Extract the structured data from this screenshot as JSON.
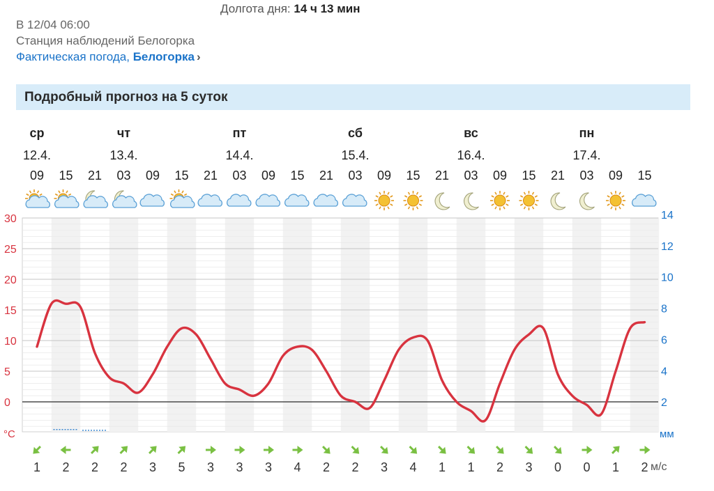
{
  "header": {
    "day_length_label": "Долгота дня:",
    "day_length_value": "14 ч 13 мин",
    "observation_time": "В 12/04 06:00",
    "station": "Станция наблюдений Белогорка",
    "actual_weather_link": "Фактическая погода,",
    "actual_weather_city": "Белогорка",
    "chevron": "›"
  },
  "section": {
    "title": "Подробный прогноз на 5 суток"
  },
  "colors": {
    "temperature_line": "#d8333f",
    "temp_axis": "#d8333f",
    "precip_axis": "#1a73c9",
    "wind_arrow": "#7ac043",
    "banner_bg": "#d8ecf9"
  },
  "chart_data": {
    "type": "line",
    "days": [
      {
        "weekday": "ср",
        "date": "12.4."
      },
      {
        "weekday": "чт",
        "date": "13.4."
      },
      {
        "weekday": "пт",
        "date": "14.4."
      },
      {
        "weekday": "сб",
        "date": "15.4."
      },
      {
        "weekday": "вс",
        "date": "16.4."
      },
      {
        "weekday": "пн",
        "date": "17.4."
      }
    ],
    "hours": [
      "09",
      "15",
      "21",
      "03",
      "09",
      "15",
      "21",
      "03",
      "09",
      "15",
      "21",
      "03",
      "09",
      "15",
      "21",
      "03",
      "09",
      "15",
      "21",
      "03",
      "09",
      "15"
    ],
    "weather_icons": [
      "sun-cloud",
      "sun-cloud",
      "moon-cloud",
      "moon-cloud",
      "cloud",
      "sun-cloud",
      "cloud",
      "cloud",
      "cloud",
      "cloud",
      "cloud",
      "cloud",
      "sun",
      "sun",
      "moon",
      "moon",
      "sun",
      "sun",
      "moon",
      "moon",
      "sun",
      "cloud"
    ],
    "series": [
      {
        "name": "",
        "x": [
          0,
          0.5,
          1,
          1.5,
          2,
          2.5,
          3,
          3.5,
          4,
          4.5,
          5,
          5.5,
          6,
          6.5,
          7,
          7.5,
          8,
          8.5,
          9,
          9.5,
          10,
          10.5,
          11,
          11.5,
          12,
          12.5,
          13,
          13.5,
          14,
          14.5,
          15,
          15.5,
          16,
          16.5,
          17,
          17.5,
          18,
          18.5,
          19,
          19.5,
          20,
          20.5,
          21
        ],
        "values": [
          9.0,
          16.0,
          16.0,
          15.5,
          8.0,
          4.0,
          3.0,
          1.5,
          4.5,
          9.0,
          12.0,
          11.0,
          7.0,
          3.0,
          2.0,
          1.0,
          3.0,
          7.5,
          9.0,
          8.5,
          5.0,
          1.0,
          0.0,
          -1.0,
          3.5,
          8.5,
          10.5,
          10.0,
          3.5,
          0.0,
          -1.5,
          -3.0,
          3.0,
          8.5,
          11.0,
          12.0,
          4.5,
          1.0,
          -0.5,
          -2.0,
          5.0,
          12.0,
          13.0
        ]
      }
    ],
    "precipitation_mm": [
      0,
      0.1,
      0.05,
      0,
      0,
      0,
      0,
      0,
      0,
      0,
      0,
      0,
      0,
      0,
      0,
      0,
      0,
      0,
      0,
      0,
      0,
      0
    ],
    "temp_axis": {
      "unit": "°C",
      "ylim": [
        -5,
        30
      ],
      "ticks": [
        "30",
        "25",
        "20",
        "15",
        "10",
        "5",
        "0"
      ]
    },
    "precip_axis": {
      "unit": "мм",
      "ylim": [
        0,
        14
      ],
      "ticks": [
        "14",
        "12",
        "10",
        "8",
        "6",
        "4",
        "2"
      ]
    },
    "wind": {
      "unit": "м/с",
      "directions": [
        "SW",
        "W",
        "NE",
        "NE",
        "NE",
        "NE",
        "E",
        "E",
        "E",
        "E",
        "SE",
        "SE",
        "SE",
        "SE",
        "SE",
        "SE",
        "SE",
        "SE",
        "SE",
        "E",
        "NE",
        "E"
      ],
      "speeds": [
        "1",
        "2",
        "2",
        "2",
        "3",
        "5",
        "3",
        "3",
        "3",
        "4",
        "2",
        "2",
        "3",
        "4",
        "1",
        "1",
        "2",
        "3",
        "0",
        "0",
        "1",
        "2"
      ]
    },
    "grid": true,
    "zero_line": true
  }
}
